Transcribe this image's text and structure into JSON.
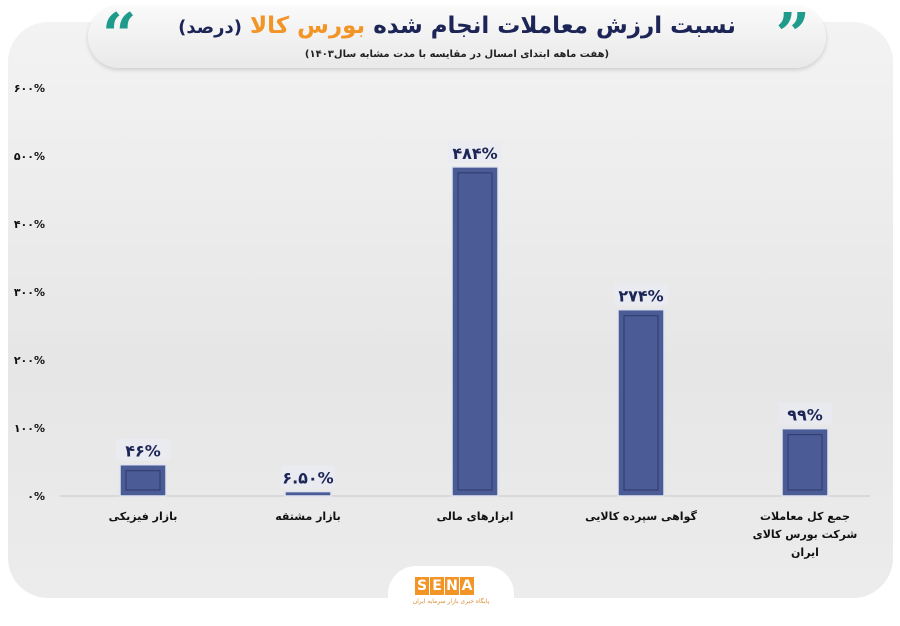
{
  "header": {
    "title_part1": "نسبت ارزش معاملات انجام شده",
    "title_accent": "بورس کالا",
    "title_part2": "(درصد)",
    "subtitle": "(هفت ماهه ابتدای امسال در مقایسه با مدت مشابه سال۱۴۰۳)",
    "open_quote": "“",
    "close_quote": "”"
  },
  "chart_data": {
    "type": "bar",
    "title": "نسبت ارزش معاملات انجام شده بورس کالا (درصد)",
    "categories": [
      "بازار فیزیکی",
      "بازار مشتقه",
      "ابزارهای مالی",
      "گواهی سپرده کالایی",
      "جمع کل معاملات شرکت بورس کالای ایران"
    ],
    "values": [
      46,
      6.5,
      484,
      274,
      99
    ],
    "data_labels": [
      "۴۶%",
      "۶.۵۰%",
      "۴۸۴%",
      "۲۷۴%",
      "۹۹%"
    ],
    "ylim": [
      0,
      600
    ],
    "yticks": [
      0,
      100,
      200,
      300,
      400,
      500,
      600
    ],
    "ytick_labels": [
      "۰%",
      "۱۰۰%",
      "۲۰۰%",
      "۳۰۰%",
      "۴۰۰%",
      "۵۰۰%",
      "۶۰۰%"
    ],
    "bar_color": "#4a5b96",
    "xlabel": "",
    "ylabel": ""
  },
  "logo": {
    "name": "SENA",
    "tagline": "پایگاه خبری بازار سرمایه ایران"
  }
}
